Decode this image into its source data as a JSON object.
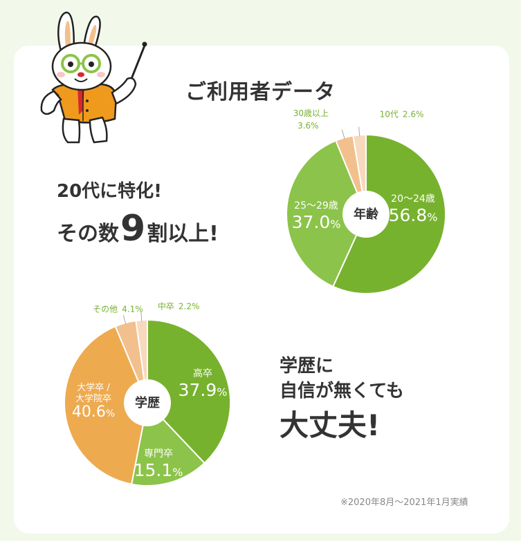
{
  "title": "ご利用者データ",
  "headline": {
    "line1": "20代に特化!",
    "line2_pre": "その数",
    "line2_big": "9",
    "line2_post": "割以上!"
  },
  "education_headline": {
    "line1": "学歴に",
    "line2": "自信が無くても",
    "line3": "大丈夫!"
  },
  "footnote": "※2020年8月～2021年1月実績",
  "colors": {
    "dark_green": "#77b22e",
    "light_green": "#8cc34a",
    "orange": "#eeaa4f",
    "peach": "#f2c08d",
    "cream": "#f7d9bd",
    "background": "#f2f8ea"
  },
  "chart_data": [
    {
      "type": "pie",
      "title": "年齢",
      "slices": [
        {
          "label": "20～24歳",
          "value": 56.8,
          "value_label": "56.8",
          "pct": "%",
          "color": "#77b22e"
        },
        {
          "label": "25～29歳",
          "value": 37.0,
          "value_label": "37.0",
          "pct": "%",
          "color": "#8cc34a"
        },
        {
          "label": "30歳以上",
          "value": 3.6,
          "value_label": "3.6%",
          "color": "#f2c08d"
        },
        {
          "label": "10代",
          "value": 2.6,
          "value_label": "2.6%",
          "color": "#f7d9bd"
        }
      ]
    },
    {
      "type": "pie",
      "title": "学歴",
      "slices": [
        {
          "label": "高卒",
          "value": 37.9,
          "value_label": "37.9",
          "pct": "%",
          "color": "#77b22e"
        },
        {
          "label": "専門卒",
          "value": 15.1,
          "value_label": "15.1",
          "pct": "%",
          "color": "#8cc34a"
        },
        {
          "label": "大学卒 /",
          "label2": "大学院卒",
          "value": 40.6,
          "value_label": "40.6",
          "pct": "%",
          "color": "#eeaa4f"
        },
        {
          "label": "その他",
          "value": 4.1,
          "value_label": "4.1%",
          "color": "#f2c08d"
        },
        {
          "label": "中卒",
          "value": 2.2,
          "value_label": "2.2%",
          "color": "#f7d9bd"
        }
      ]
    }
  ]
}
